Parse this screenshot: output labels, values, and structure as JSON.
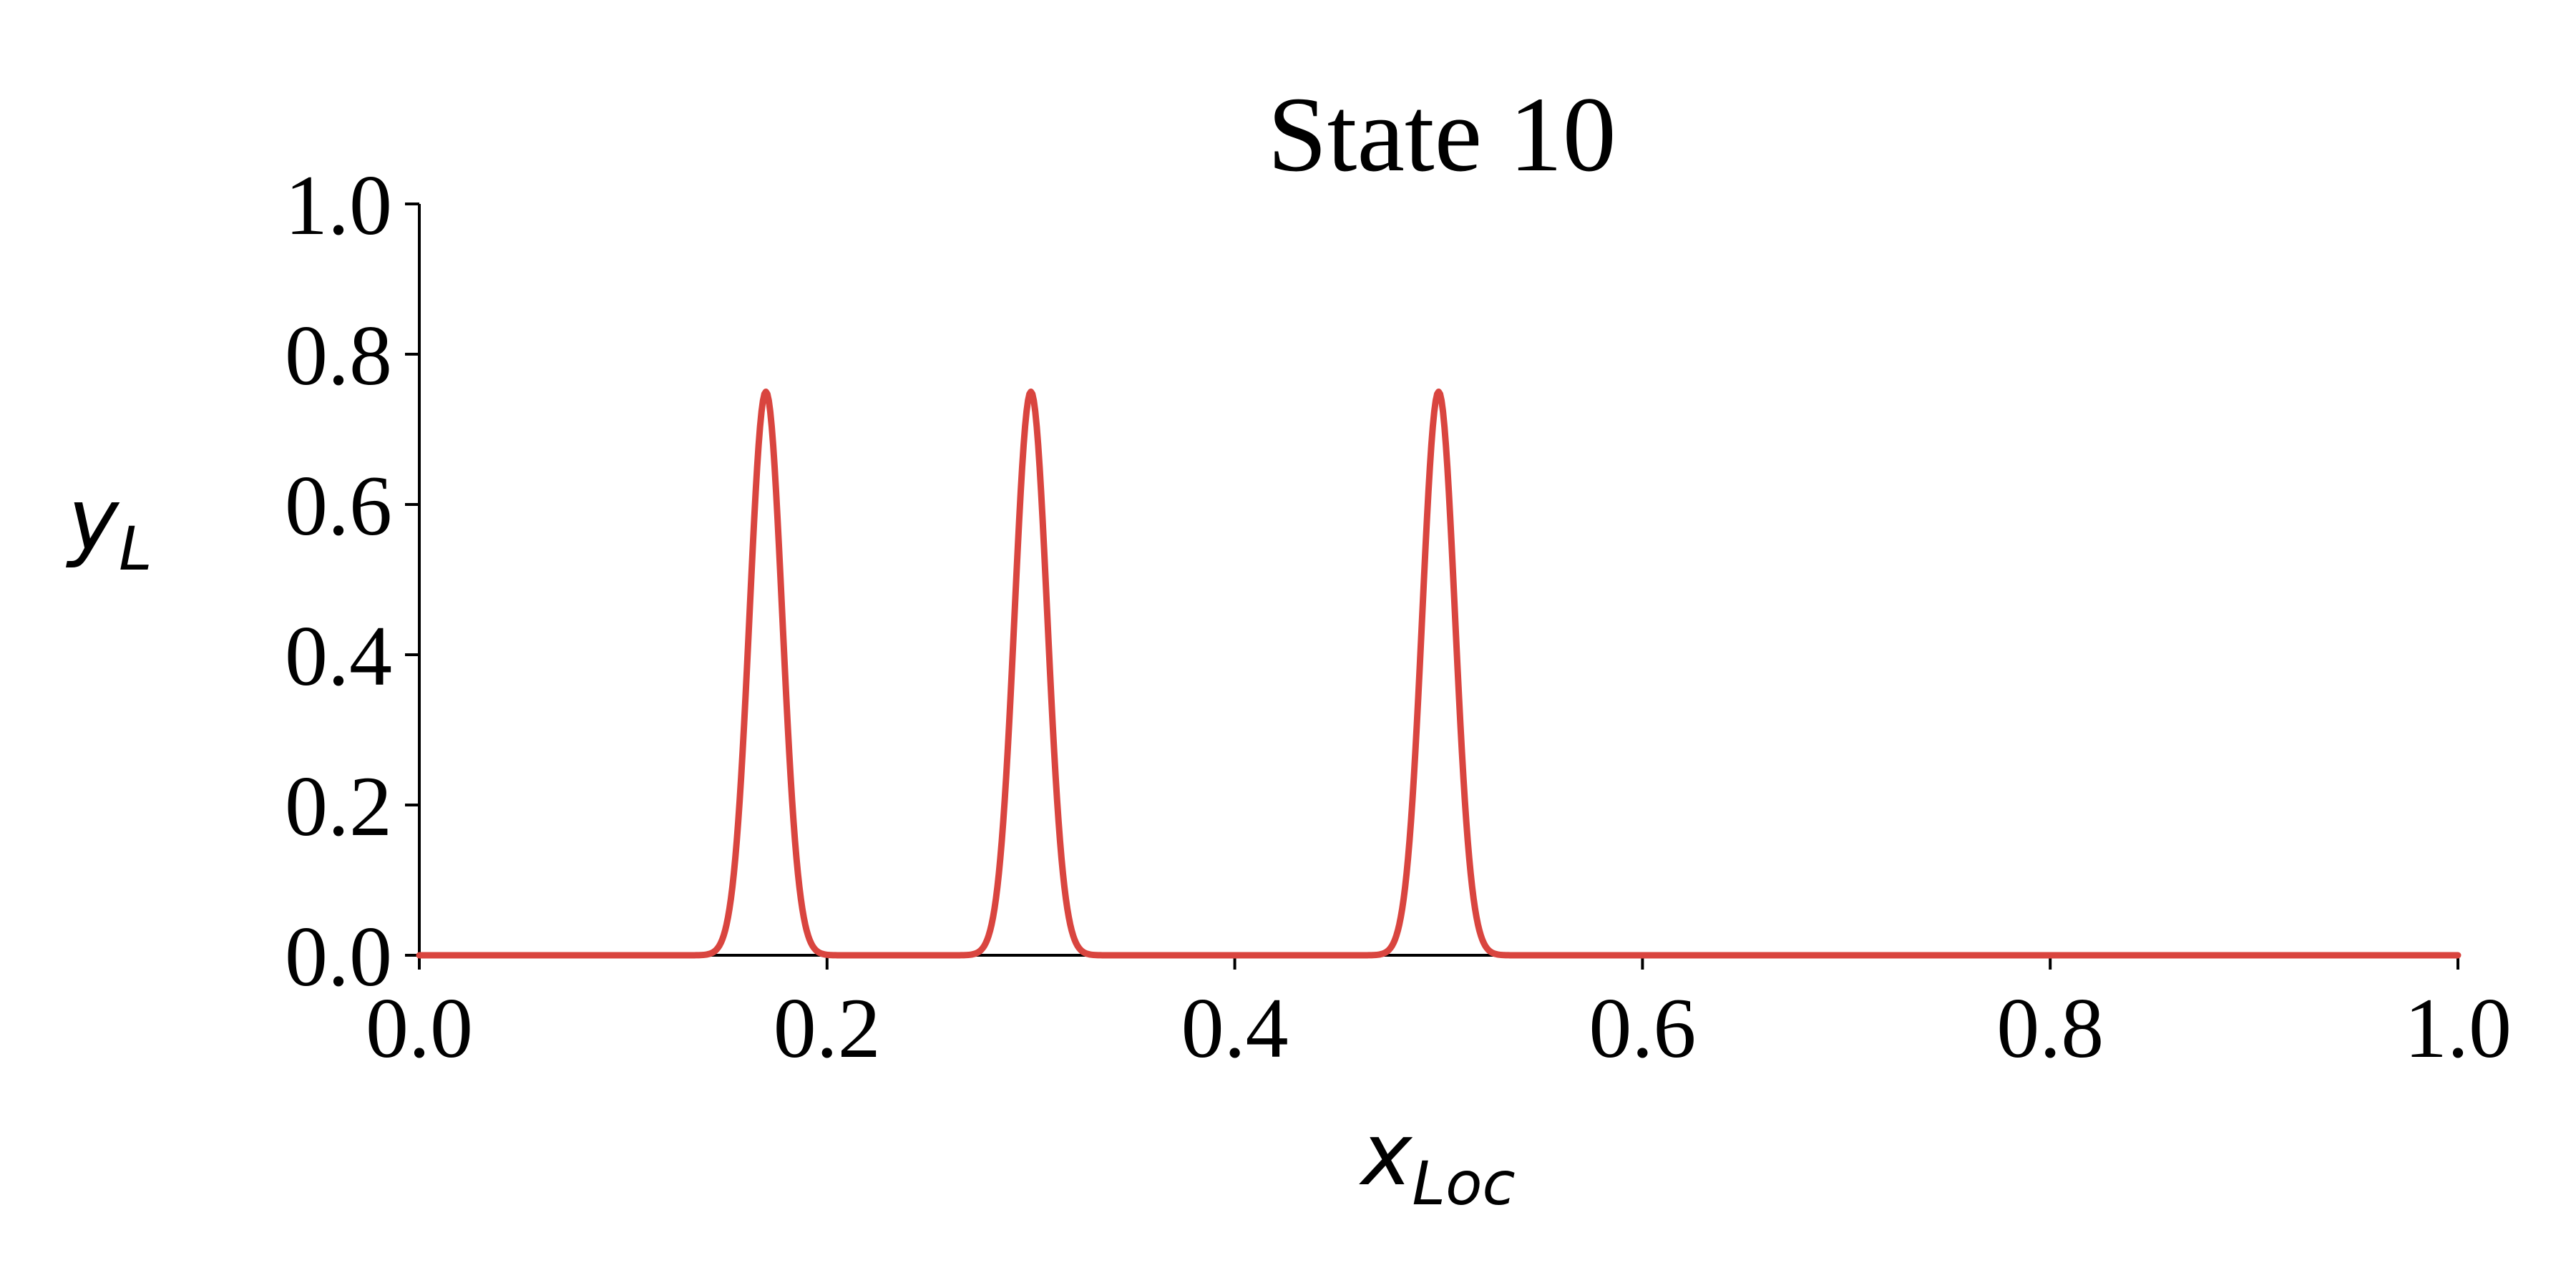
{
  "chart_data": {
    "type": "line",
    "title": "State 10",
    "xlabel": {
      "main": "x",
      "sub": "Loc"
    },
    "ylabel": {
      "main": "y",
      "sub": "L"
    },
    "xlim": [
      0.0,
      1.0
    ],
    "ylim": [
      0.0,
      1.0
    ],
    "x_ticks": [
      0.0,
      0.2,
      0.4,
      0.6,
      0.8,
      1.0
    ],
    "x_tick_labels": [
      "0.0",
      "0.2",
      "0.4",
      "0.6",
      "0.8",
      "1.0"
    ],
    "y_ticks": [
      0.0,
      0.2,
      0.4,
      0.6,
      0.8,
      1.0
    ],
    "y_tick_labels": [
      "0.0",
      "0.2",
      "0.4",
      "0.6",
      "0.8",
      "1.0"
    ],
    "grid": false,
    "series": [
      {
        "color": "#d9453f",
        "peaks": [
          {
            "center": 0.17,
            "height": 0.75,
            "sigma": 0.008
          },
          {
            "center": 0.3,
            "height": 0.75,
            "sigma": 0.008
          },
          {
            "center": 0.5,
            "height": 0.75,
            "sigma": 0.008
          }
        ],
        "points": [
          [
            0.0,
            0.0
          ],
          [
            0.13,
            0.0
          ],
          [
            0.14,
            0.0
          ],
          [
            0.15,
            0.03
          ],
          [
            0.16,
            0.35
          ],
          [
            0.17,
            0.75
          ],
          [
            0.18,
            0.35
          ],
          [
            0.19,
            0.03
          ],
          [
            0.2,
            0.0
          ],
          [
            0.27,
            0.0
          ],
          [
            0.28,
            0.03
          ],
          [
            0.29,
            0.35
          ],
          [
            0.3,
            0.75
          ],
          [
            0.31,
            0.35
          ],
          [
            0.32,
            0.03
          ],
          [
            0.33,
            0.0
          ],
          [
            0.47,
            0.0
          ],
          [
            0.48,
            0.03
          ],
          [
            0.49,
            0.35
          ],
          [
            0.5,
            0.75
          ],
          [
            0.51,
            0.35
          ],
          [
            0.52,
            0.03
          ],
          [
            0.53,
            0.0
          ],
          [
            1.0,
            0.0
          ]
        ]
      }
    ]
  }
}
